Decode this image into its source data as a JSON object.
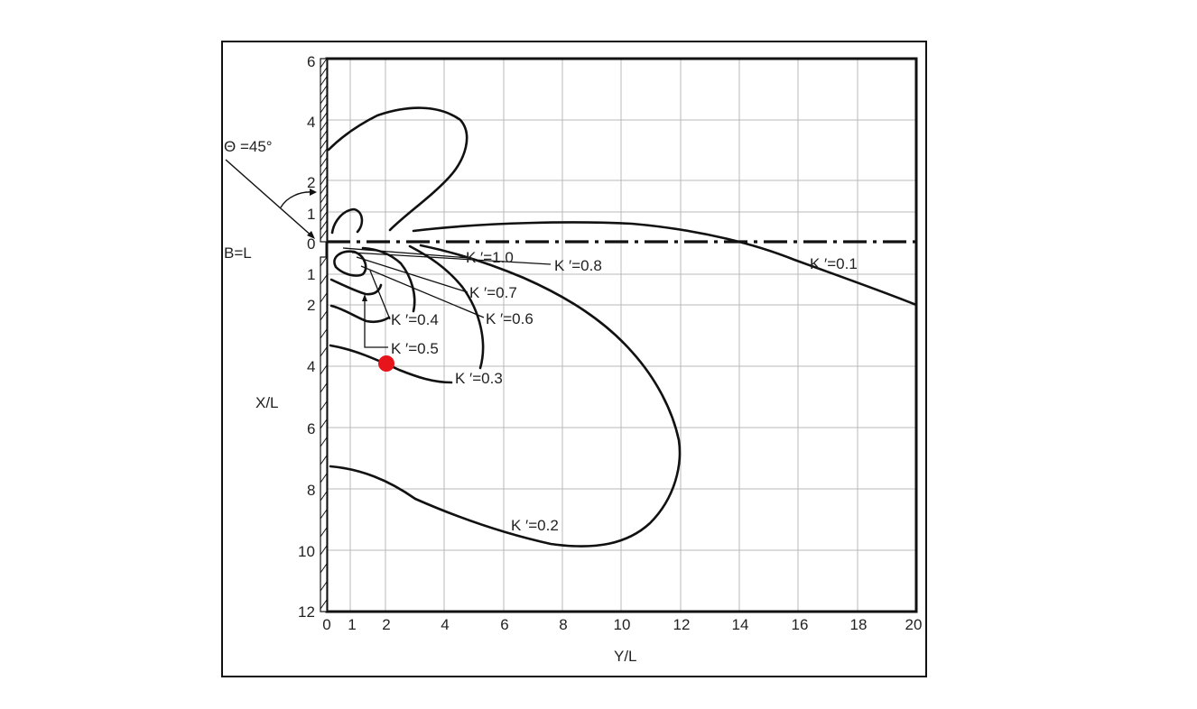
{
  "diagram": {
    "angle_label": "Θ =45°",
    "width_label": "B=L",
    "y_axis_label": "X/L",
    "x_axis_label": "Y/L",
    "x_ticks": [
      "0",
      "1",
      "2",
      "4",
      "6",
      "8",
      "10",
      "12",
      "14",
      "16",
      "18",
      "20"
    ],
    "y_ticks_upper": [
      "6",
      "4",
      "2",
      "1",
      "0"
    ],
    "y_ticks_lower": [
      "1",
      "2",
      "4",
      "6",
      "8",
      "10",
      "12"
    ],
    "contour_labels": {
      "k10": "K ′=1.0",
      "k08": "K ′=0.8",
      "k07": "K ′=0.7",
      "k06": "K ′=0.6",
      "k05": "K ′=0.5",
      "k04": "K ′=0.4",
      "k03": "K ′=0.3",
      "k02": "K ′=0.2",
      "k01": "K ′=0.1"
    },
    "colors": {
      "line": "#111111",
      "grid": "#b8b8b8",
      "marker": "#e8141b"
    }
  }
}
